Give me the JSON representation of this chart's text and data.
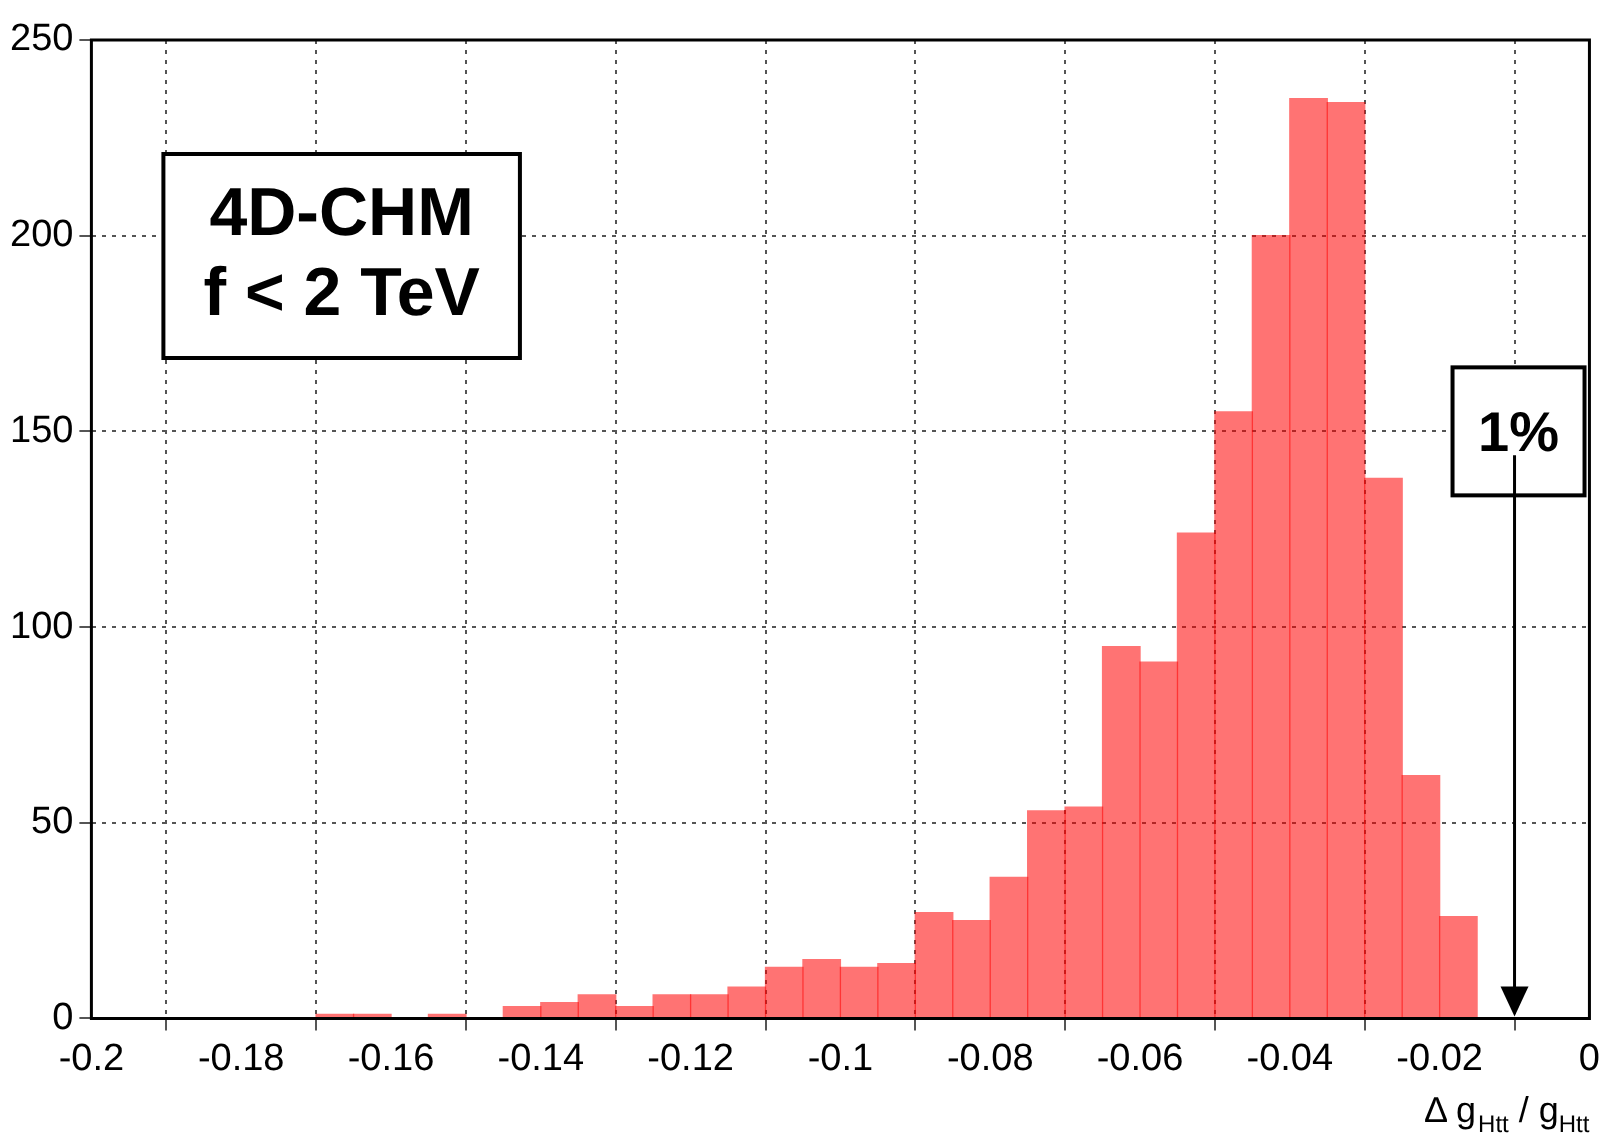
{
  "chart_data": {
    "type": "histogram",
    "xlabel": "Δ g$_{Htt}$ / g$_{Htt}$",
    "bins": [
      -0.2,
      -0.195,
      -0.19,
      -0.185,
      -0.18,
      -0.175,
      -0.17,
      -0.165,
      -0.16,
      -0.155,
      -0.15,
      -0.145,
      -0.14,
      -0.135,
      -0.13,
      -0.125,
      -0.12,
      -0.115,
      -0.11,
      -0.105,
      -0.1,
      -0.095,
      -0.09,
      -0.085,
      -0.08,
      -0.075,
      -0.07,
      -0.065,
      -0.06,
      -0.055,
      -0.05,
      -0.045,
      -0.04,
      -0.035,
      -0.03,
      -0.025,
      -0.02,
      -0.015,
      -0.01,
      -0.005,
      0
    ],
    "values": [
      0,
      0,
      0,
      0,
      0,
      0,
      1,
      1,
      0,
      1,
      0,
      3,
      4,
      6,
      3,
      6,
      6,
      8,
      13,
      15,
      13,
      14,
      27,
      25,
      36,
      53,
      54,
      95,
      91,
      124,
      155,
      200,
      235,
      234,
      138,
      62,
      26,
      0,
      0,
      0
    ],
    "color": "#ff0000",
    "xlim": [
      -0.2,
      0
    ],
    "xticks": [
      -0.2,
      -0.18,
      -0.16,
      -0.14,
      -0.12,
      -0.1,
      -0.08,
      -0.06,
      -0.04,
      -0.02,
      0
    ],
    "ylim": [
      0,
      250
    ],
    "yticks": [
      0,
      50,
      100,
      150,
      200,
      250
    ],
    "grid": true,
    "legend": false,
    "annotations": [
      "4D-CHM",
      "f < 2 TeV",
      "1%"
    ]
  }
}
